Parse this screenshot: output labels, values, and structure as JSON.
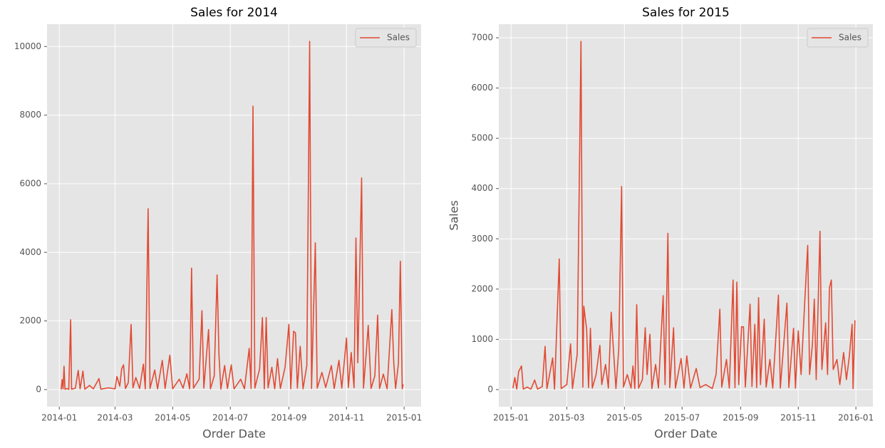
{
  "chart_data": [
    {
      "type": "line",
      "title": "Sales for 2014",
      "xlabel": "Order Date",
      "x": [
        "2014-01-03",
        "2014-01-04",
        "2014-01-05",
        "2014-01-06",
        "2014-01-07",
        "2014-01-09",
        "2014-01-11",
        "2014-01-13",
        "2014-01-14",
        "2014-01-18",
        "2014-01-21",
        "2014-01-23",
        "2014-01-26",
        "2014-01-28",
        "2014-02-02",
        "2014-02-06",
        "2014-02-12",
        "2014-02-14",
        "2014-02-22",
        "2014-03-01",
        "2014-03-03",
        "2014-03-06",
        "2014-03-08",
        "2014-03-10",
        "2014-03-12",
        "2014-03-15",
        "2014-03-18",
        "2014-03-20",
        "2014-03-23",
        "2014-03-27",
        "2014-03-31",
        "2014-04-02",
        "2014-04-05",
        "2014-04-07",
        "2014-04-12",
        "2014-04-15",
        "2014-04-20",
        "2014-04-23",
        "2014-04-28",
        "2014-05-01",
        "2014-05-08",
        "2014-05-12",
        "2014-05-16",
        "2014-05-19",
        "2014-05-21",
        "2014-05-23",
        "2014-05-29",
        "2014-06-01",
        "2014-06-03",
        "2014-06-08",
        "2014-06-10",
        "2014-06-14",
        "2014-06-17",
        "2014-06-19",
        "2014-06-21",
        "2014-06-25",
        "2014-06-28",
        "2014-07-02",
        "2014-07-05",
        "2014-07-12",
        "2014-07-16",
        "2014-07-21",
        "2014-07-23",
        "2014-07-25",
        "2014-07-27",
        "2014-08-01",
        "2014-08-04",
        "2014-08-06",
        "2014-08-08",
        "2014-08-10",
        "2014-08-14",
        "2014-08-17",
        "2014-08-20",
        "2014-08-23",
        "2014-08-28",
        "2014-09-01",
        "2014-09-03",
        "2014-09-06",
        "2014-09-08",
        "2014-09-10",
        "2014-09-13",
        "2014-09-16",
        "2014-09-20",
        "2014-09-23",
        "2014-09-25",
        "2014-09-29",
        "2014-10-01",
        "2014-10-06",
        "2014-10-10",
        "2014-10-16",
        "2014-10-19",
        "2014-10-24",
        "2014-10-27",
        "2014-11-01",
        "2014-11-03",
        "2014-11-06",
        "2014-11-09",
        "2014-11-11",
        "2014-11-13",
        "2014-11-17",
        "2014-11-19",
        "2014-11-22",
        "2014-11-24",
        "2014-11-27",
        "2014-12-01",
        "2014-12-04",
        "2014-12-06",
        "2014-12-10",
        "2014-12-14",
        "2014-12-19",
        "2014-12-21",
        "2014-12-23",
        "2014-12-26",
        "2014-12-28",
        "2014-12-30",
        "2014-12-31"
      ],
      "series": [
        {
          "name": "Sales",
          "color": "#e24a33",
          "values": [
            0,
            290,
            20,
            680,
            10,
            30,
            5,
            2035,
            10,
            40,
            560,
            20,
            540,
            10,
            120,
            20,
            320,
            10,
            50,
            20,
            380,
            100,
            600,
            720,
            30,
            200,
            1900,
            50,
            350,
            30,
            740,
            20,
            5270,
            30,
            570,
            20,
            850,
            30,
            1000,
            20,
            300,
            40,
            460,
            20,
            3540,
            40,
            300,
            2300,
            40,
            1750,
            20,
            400,
            3340,
            1020,
            10,
            700,
            30,
            720,
            20,
            300,
            20,
            1200,
            30,
            8260,
            40,
            600,
            2100,
            20,
            2100,
            50,
            650,
            20,
            900,
            30,
            650,
            1900,
            20,
            1700,
            1650,
            40,
            1260,
            20,
            700,
            10150,
            30,
            4280,
            40,
            500,
            60,
            700,
            30,
            850,
            40,
            1500,
            60,
            1080,
            50,
            4420,
            780,
            6170,
            40,
            1100,
            1870,
            30,
            400,
            2170,
            30,
            450,
            20,
            2330,
            800,
            30,
            770,
            3740,
            20,
            150
          ]
        }
      ],
      "xlim": [
        "2013-12-19",
        "2015-01-19"
      ],
      "xticks": [
        {
          "value": "2014-01-01",
          "label": "2014-01"
        },
        {
          "value": "2014-03-01",
          "label": "2014-03"
        },
        {
          "value": "2014-05-01",
          "label": "2014-05"
        },
        {
          "value": "2014-07-01",
          "label": "2014-07"
        },
        {
          "value": "2014-09-01",
          "label": "2014-09"
        },
        {
          "value": "2014-11-01",
          "label": "2014-11"
        },
        {
          "value": "2015-01-01",
          "label": "2015-01"
        }
      ],
      "ylim": [
        -500,
        10650
      ],
      "yticks": [
        0,
        2000,
        4000,
        6000,
        8000,
        10000
      ],
      "grid": true,
      "legend": "upper right"
    },
    {
      "type": "line",
      "title": "Sales for 2015",
      "xlabel": "Order Date",
      "ylabel": "Sales",
      "x": [
        "2015-01-03",
        "2015-01-05",
        "2015-01-07",
        "2015-01-09",
        "2015-01-12",
        "2015-01-14",
        "2015-01-18",
        "2015-01-22",
        "2015-01-26",
        "2015-01-29",
        "2015-02-03",
        "2015-02-06",
        "2015-02-08",
        "2015-02-14",
        "2015-02-16",
        "2015-02-21",
        "2015-02-23",
        "2015-03-01",
        "2015-03-05",
        "2015-03-07",
        "2015-03-12",
        "2015-03-16",
        "2015-03-18",
        "2015-03-19",
        "2015-03-22",
        "2015-03-24",
        "2015-03-26",
        "2015-03-28",
        "2015-04-01",
        "2015-04-05",
        "2015-04-07",
        "2015-04-11",
        "2015-04-14",
        "2015-04-17",
        "2015-04-19",
        "2015-04-22",
        "2015-04-25",
        "2015-04-28",
        "2015-04-30",
        "2015-05-04",
        "2015-05-08",
        "2015-05-10",
        "2015-05-12",
        "2015-05-14",
        "2015-05-16",
        "2015-05-20",
        "2015-05-23",
        "2015-05-25",
        "2015-05-28",
        "2015-05-30",
        "2015-06-03",
        "2015-06-06",
        "2015-06-11",
        "2015-06-13",
        "2015-06-16",
        "2015-06-18",
        "2015-06-22",
        "2015-06-24",
        "2015-06-30",
        "2015-07-03",
        "2015-07-06",
        "2015-07-10",
        "2015-07-16",
        "2015-07-20",
        "2015-07-26",
        "2015-08-02",
        "2015-08-06",
        "2015-08-10",
        "2015-08-12",
        "2015-08-17",
        "2015-08-20",
        "2015-08-24",
        "2015-08-26",
        "2015-08-28",
        "2015-08-30",
        "2015-09-02",
        "2015-09-04",
        "2015-09-06",
        "2015-09-11",
        "2015-09-13",
        "2015-09-16",
        "2015-09-18",
        "2015-09-20",
        "2015-09-22",
        "2015-09-26",
        "2015-09-28",
        "2015-10-02",
        "2015-10-05",
        "2015-10-11",
        "2015-10-13",
        "2015-10-20",
        "2015-10-22",
        "2015-10-27",
        "2015-10-29",
        "2015-11-01",
        "2015-11-04",
        "2015-11-08",
        "2015-11-11",
        "2015-11-13",
        "2015-11-16",
        "2015-11-18",
        "2015-11-20",
        "2015-11-24",
        "2015-11-26",
        "2015-11-30",
        "2015-12-02",
        "2015-12-04",
        "2015-12-06",
        "2015-12-08",
        "2015-12-12",
        "2015-12-15",
        "2015-12-19",
        "2015-12-22",
        "2015-12-25",
        "2015-12-28",
        "2015-12-29",
        "2015-12-31"
      ],
      "series": [
        {
          "name": "Sales",
          "color": "#e24a33",
          "values": [
            30,
            240,
            10,
            360,
            470,
            10,
            50,
            10,
            190,
            10,
            60,
            860,
            20,
            630,
            10,
            2600,
            20,
            100,
            910,
            20,
            700,
            6930,
            50,
            1660,
            1200,
            40,
            1220,
            30,
            300,
            880,
            100,
            500,
            30,
            1540,
            900,
            20,
            800,
            4040,
            50,
            300,
            30,
            470,
            20,
            1690,
            30,
            200,
            1230,
            300,
            1100,
            20,
            500,
            30,
            1870,
            100,
            3110,
            40,
            1230,
            30,
            620,
            30,
            670,
            30,
            420,
            40,
            100,
            20,
            300,
            1600,
            50,
            600,
            30,
            2180,
            40,
            2140,
            100,
            1250,
            1250,
            50,
            1700,
            60,
            1300,
            40,
            1830,
            100,
            1400,
            50,
            600,
            30,
            1880,
            30,
            1720,
            40,
            1220,
            30,
            1170,
            300,
            1800,
            2870,
            300,
            900,
            1800,
            200,
            3150,
            400,
            1330,
            300,
            2030,
            2180,
            400,
            600,
            100,
            740,
            200,
            650,
            1300,
            20,
            1380
          ]
        }
      ],
      "xlim": [
        "2014-12-19",
        "2016-01-19"
      ],
      "xticks": [
        {
          "value": "2015-01-01",
          "label": "2015-01"
        },
        {
          "value": "2015-03-01",
          "label": "2015-03"
        },
        {
          "value": "2015-05-01",
          "label": "2015-05"
        },
        {
          "value": "2015-07-01",
          "label": "2015-07"
        },
        {
          "value": "2015-09-01",
          "label": "2015-09"
        },
        {
          "value": "2015-11-01",
          "label": "2015-11"
        },
        {
          "value": "2016-01-01",
          "label": "2016-01"
        }
      ],
      "ylim": [
        -340,
        7270
      ],
      "yticks": [
        0,
        1000,
        2000,
        3000,
        4000,
        5000,
        6000,
        7000
      ],
      "grid": true,
      "legend": "upper right"
    }
  ]
}
